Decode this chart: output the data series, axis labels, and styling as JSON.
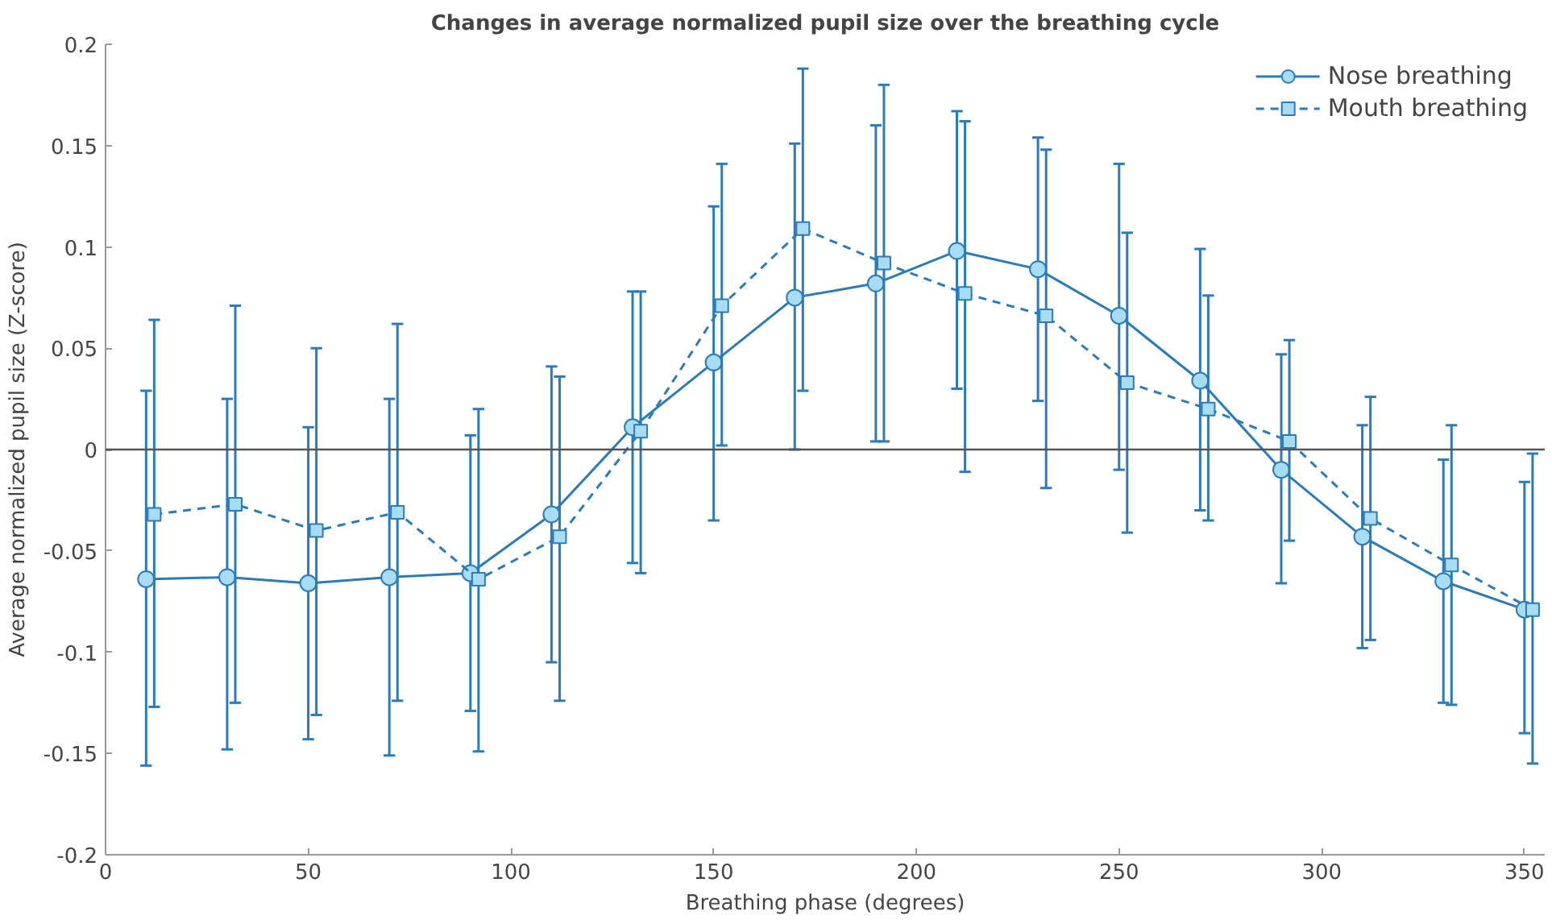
{
  "chart_data": {
    "type": "line",
    "title": "Changes in average normalized pupil size over the breathing cycle",
    "xlabel": "Breathing phase (degrees)",
    "ylabel": "Average normalized pupil size (Z-score)",
    "xlim": [
      0,
      355
    ],
    "xticks": [
      0,
      50,
      100,
      150,
      200,
      250,
      300,
      350
    ],
    "ylim": [
      -0.2,
      0.2
    ],
    "yticks": [
      -0.2,
      -0.15,
      -0.1,
      -0.05,
      0,
      0.05,
      0.1,
      0.15,
      0.2
    ],
    "grid": false,
    "legend": "top right",
    "ref_lines": [
      {
        "axis": "y",
        "value": 0,
        "color": "#555555"
      }
    ],
    "series": [
      {
        "name": "Nose breathing",
        "color": "#2b7bb9",
        "marker": "circle",
        "line_style": "solid",
        "x": [
          10,
          30,
          50,
          70,
          90,
          110,
          130,
          150,
          170,
          190,
          210,
          230,
          250,
          270,
          290,
          310,
          330,
          350
        ],
        "values": [
          -0.064,
          -0.063,
          -0.066,
          -0.063,
          -0.061,
          -0.032,
          0.011,
          0.043,
          0.075,
          0.082,
          0.098,
          0.089,
          0.066,
          0.034,
          -0.01,
          -0.043,
          -0.065,
          -0.079
        ],
        "errors": [
          [
            -0.156,
            0.029
          ],
          [
            -0.148,
            0.025
          ],
          [
            -0.143,
            0.011
          ],
          [
            -0.151,
            0.025
          ],
          [
            -0.129,
            0.007
          ],
          [
            -0.105,
            0.041
          ],
          [
            -0.056,
            0.078
          ],
          [
            -0.035,
            0.12
          ],
          [
            0.0,
            0.151
          ],
          [
            0.004,
            0.16
          ],
          [
            0.03,
            0.167
          ],
          [
            0.024,
            0.154
          ],
          [
            -0.01,
            0.141
          ],
          [
            -0.03,
            0.099
          ],
          [
            -0.066,
            0.047
          ],
          [
            -0.098,
            0.012
          ],
          [
            -0.125,
            -0.005
          ],
          [
            -0.14,
            -0.016
          ]
        ]
      },
      {
        "name": "Mouth breathing",
        "color": "#2b7bb9",
        "marker": "square",
        "line_style": "dashed",
        "x": [
          12,
          32,
          52,
          72,
          92,
          112,
          132,
          152,
          172,
          192,
          212,
          232,
          252,
          272,
          292,
          312,
          332,
          352
        ],
        "values": [
          -0.032,
          -0.027,
          -0.04,
          -0.031,
          -0.064,
          -0.043,
          0.009,
          0.071,
          0.109,
          0.092,
          0.077,
          0.066,
          0.033,
          0.02,
          0.004,
          -0.034,
          -0.057,
          -0.079
        ],
        "errors": [
          [
            -0.127,
            0.064
          ],
          [
            -0.125,
            0.071
          ],
          [
            -0.131,
            0.05
          ],
          [
            -0.124,
            0.062
          ],
          [
            -0.149,
            0.02
          ],
          [
            -0.124,
            0.036
          ],
          [
            -0.061,
            0.078
          ],
          [
            0.002,
            0.141
          ],
          [
            0.029,
            0.188
          ],
          [
            0.004,
            0.18
          ],
          [
            -0.011,
            0.162
          ],
          [
            -0.019,
            0.148
          ],
          [
            -0.041,
            0.107
          ],
          [
            -0.035,
            0.076
          ],
          [
            -0.045,
            0.054
          ],
          [
            -0.094,
            0.026
          ],
          [
            -0.126,
            0.012
          ],
          [
            -0.155,
            -0.002
          ]
        ]
      }
    ]
  }
}
